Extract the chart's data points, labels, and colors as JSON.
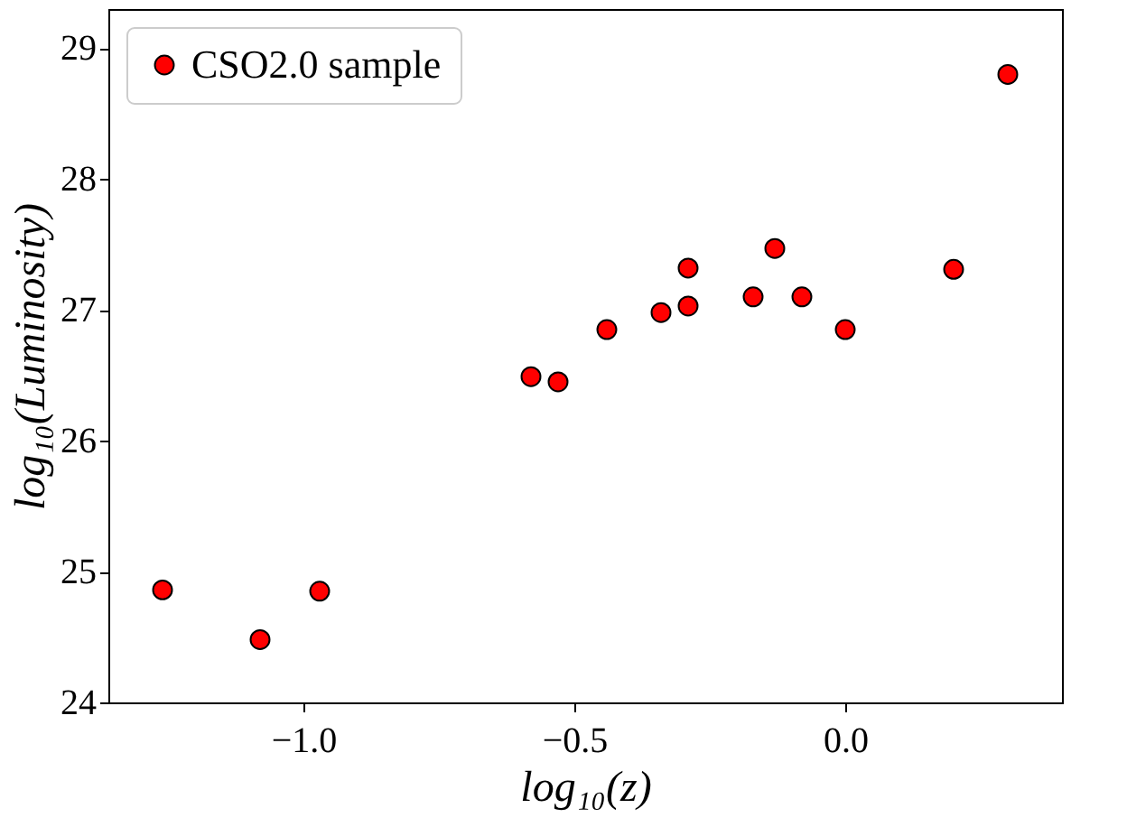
{
  "chart_data": {
    "type": "scatter",
    "xlabel": "log₁₀(z)",
    "ylabel": "log₁₀(Luminosity)",
    "x": [
      -1.26,
      -1.08,
      -0.97,
      -0.58,
      -0.53,
      -0.44,
      -0.34,
      -0.29,
      -0.29,
      -0.17,
      -0.13,
      -0.08,
      0.0,
      0.2,
      0.3
    ],
    "series": [
      {
        "name": "CSO2.0 sample",
        "color": "#ff0000",
        "values": [
          24.86,
          24.48,
          24.85,
          26.49,
          26.45,
          26.85,
          26.98,
          27.03,
          27.32,
          27.1,
          27.47,
          27.1,
          26.85,
          27.31,
          28.8
        ]
      }
    ],
    "xlim": [
      -1.36,
      0.4
    ],
    "ylim": [
      24,
      29.3
    ],
    "xticks": [
      {
        "value": -1.0,
        "label": "−1.0"
      },
      {
        "value": -0.5,
        "label": "−0.5"
      },
      {
        "value": 0.0,
        "label": "0.0"
      }
    ],
    "yticks": [
      24,
      25,
      26,
      27,
      28,
      29
    ],
    "marker": "circle",
    "legend": "top left",
    "grid": false
  }
}
